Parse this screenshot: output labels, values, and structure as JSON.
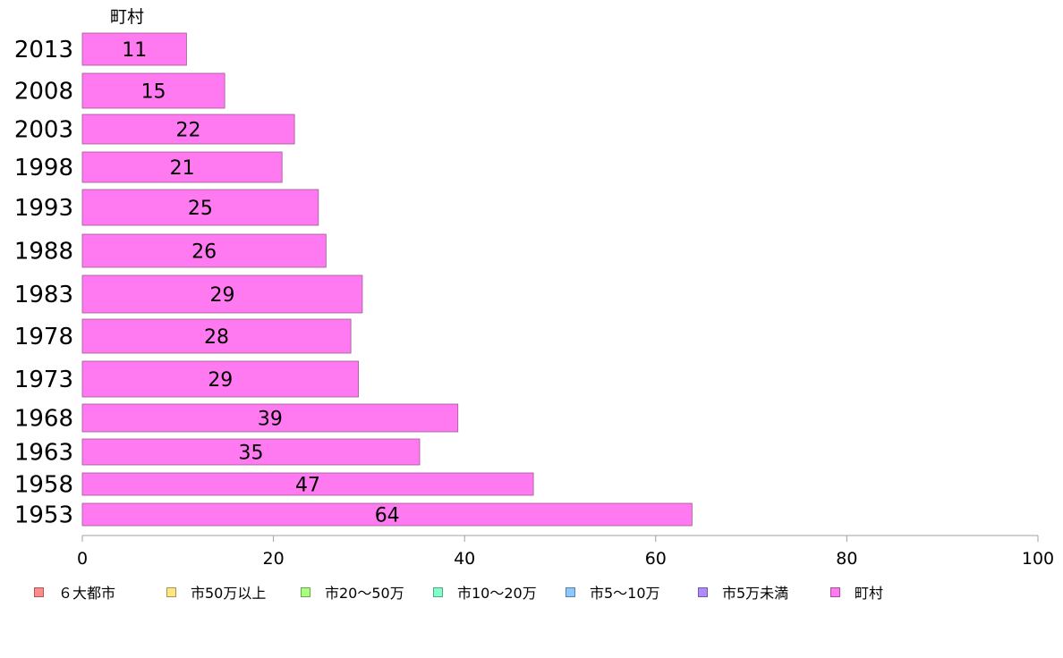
{
  "chart_data": {
    "type": "bar",
    "orientation": "horizontal",
    "series_label": "町村",
    "categories": [
      "2013",
      "2008",
      "2003",
      "1998",
      "1993",
      "1988",
      "1983",
      "1978",
      "1973",
      "1968",
      "1963",
      "1958",
      "1953"
    ],
    "values": [
      11,
      15,
      22,
      21,
      25,
      26,
      29,
      28,
      29,
      39,
      35,
      47,
      64
    ],
    "bar_lengths": [
      10.9,
      14.9,
      22.2,
      20.9,
      24.7,
      25.5,
      29.3,
      28.1,
      28.9,
      39.3,
      35.3,
      47.2,
      63.8
    ],
    "xlim": [
      0,
      100
    ],
    "xticks": [
      "0",
      "20",
      "40",
      "60",
      "80",
      "100"
    ],
    "grid": false,
    "legend_position": "bottom",
    "legend": [
      {
        "label": "６大都市",
        "color": "#ff8a8a"
      },
      {
        "label": "市50万以上",
        "color": "#ffe680"
      },
      {
        "label": "市20〜50万",
        "color": "#a8ff80"
      },
      {
        "label": "市10〜20万",
        "color": "#80ffcc"
      },
      {
        "label": "市5〜10万",
        "color": "#8ac8ff"
      },
      {
        "label": "市5万未満",
        "color": "#b08aff"
      },
      {
        "label": "町村",
        "color": "#ff7af0"
      }
    ],
    "bar_color": "#ff7af0"
  }
}
